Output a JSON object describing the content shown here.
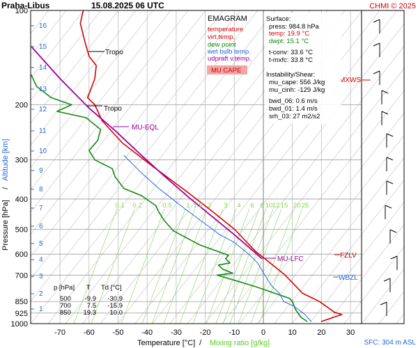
{
  "header": {
    "station": "Praha-Libus",
    "datetime": "15.08.2025 06 UTC",
    "credit": "CHMI © 2025"
  },
  "legend": {
    "title": "EMAGRAM",
    "items": [
      {
        "label": "temperature",
        "color": "#d40000"
      },
      {
        "label": "virt.temp.",
        "color": "#d40000"
      },
      {
        "label": "dew point",
        "color": "#118811"
      },
      {
        "label": "wet bulb temp.",
        "color": "#2266dd"
      },
      {
        "label": "udpraft v.temp.",
        "color": "#9a009a"
      }
    ],
    "badge": "MU CAPE",
    "badge_color": "#f4a6a6"
  },
  "info": {
    "surface_title": "Surface:",
    "surface": [
      {
        "text": "press: 984.8 hPa",
        "color": "#000000"
      },
      {
        "text": "temp: 19.9 °C",
        "color": "#d40000"
      },
      {
        "text": "dwpt: 15.1 °C",
        "color": "#118811"
      }
    ],
    "conv": [
      "t-conv: 33.6 °C",
      "t-mxfc: 33.8 °C"
    ],
    "instab_title": "Instability/Shear:",
    "instab": [
      "mu_cape: 556 J/kg",
      "mu_cinh: -129 J/kg"
    ],
    "shear": [
      "bwd_06: 0.6 m/s",
      "bwd_01: 1.4 m/s",
      "srh_03: 27 m2/s2"
    ]
  },
  "table": {
    "headers": [
      "p [hPa]",
      "T",
      "Td [°C]"
    ],
    "rows": [
      [
        "500",
        "-9.9",
        "-30.9"
      ],
      [
        "700",
        "7.5",
        "-15.9"
      ],
      [
        "850",
        "19.3",
        "10.0"
      ]
    ]
  },
  "axis_labels": {
    "x_temp": "Temperature [°C]",
    "x_sep": "/",
    "x_mix": "Mixing ratio [g/kg]",
    "y_pres": "Pressure [hPa]",
    "y_sep": "/",
    "y_alt": "Altitude [km]",
    "sfc": "SFC: 304 m ASL"
  },
  "levels": {
    "tropo1": "Tropo",
    "tropo2": "Tropo",
    "mu_eql": "MU-EQL",
    "mu_lfc": "MU-LFC",
    "mxws": "MXWS",
    "fzlv": "FZLV",
    "wbzl": "WBZL"
  },
  "chart_data": {
    "type": "line",
    "x_axis": {
      "label": "Temperature [°C]",
      "ticks": [
        -70,
        -60,
        -50,
        -40,
        -30,
        -20,
        -10,
        0,
        10,
        20,
        30
      ],
      "range": [
        -80,
        35
      ]
    },
    "y_axis": {
      "label": "Pressure [hPa]",
      "scale": "log",
      "ticks": [
        100,
        200,
        300,
        400,
        500,
        600,
        700,
        850,
        925,
        1000
      ],
      "range": [
        1000,
        100
      ]
    },
    "altitude_km_ticks": [
      1,
      2,
      3,
      4,
      5,
      6,
      7,
      8,
      9,
      10,
      11,
      12,
      13,
      14,
      15,
      16
    ],
    "mixing_ratio_labels": [
      "0.1",
      "0.2",
      "0.5",
      "1",
      "1.5",
      "2",
      "3",
      "4",
      "6",
      "8",
      "10",
      "12",
      "15",
      "20",
      "25"
    ],
    "series": [
      {
        "name": "temperature",
        "color": "#d40000",
        "points": [
          [
            19.9,
            985
          ],
          [
            27.0,
            935
          ],
          [
            24.5,
            920
          ],
          [
            19.3,
            850
          ],
          [
            13.5,
            800
          ],
          [
            7.5,
            700
          ],
          [
            0.5,
            620
          ],
          [
            -2.5,
            590
          ],
          [
            -9.9,
            500
          ],
          [
            -18.0,
            435
          ],
          [
            -27.0,
            375
          ],
          [
            -38.0,
            315
          ],
          [
            -48.5,
            265
          ],
          [
            -55.5,
            225
          ],
          [
            -58.0,
            200
          ],
          [
            -60.5,
            190
          ],
          [
            -58.0,
            165
          ],
          [
            -57.5,
            150
          ],
          [
            -60.0,
            140
          ],
          [
            -61.5,
            125
          ],
          [
            -63.0,
            110
          ],
          [
            -62.0,
            100
          ]
        ]
      },
      {
        "name": "dew point",
        "color": "#118811",
        "points": [
          [
            15.1,
            985
          ],
          [
            13.0,
            955
          ],
          [
            11.0,
            900
          ],
          [
            10.0,
            850
          ],
          [
            9.0,
            830
          ],
          [
            -3.0,
            760
          ],
          [
            -15.9,
            700
          ],
          [
            -10.5,
            690
          ],
          [
            -14.0,
            670
          ],
          [
            -15.5,
            650
          ],
          [
            -11.5,
            640
          ],
          [
            -13.0,
            620
          ],
          [
            -12.0,
            605
          ],
          [
            -22.0,
            560
          ],
          [
            -31.0,
            505
          ],
          [
            -34.0,
            470
          ],
          [
            -36.0,
            440
          ],
          [
            -37.0,
            420
          ],
          [
            -42.0,
            390
          ],
          [
            -48.0,
            370
          ],
          [
            -51.0,
            340
          ],
          [
            -52.0,
            320
          ],
          [
            -58.0,
            300
          ],
          [
            -60.0,
            280
          ],
          [
            -57.0,
            260
          ],
          [
            -56.0,
            240
          ],
          [
            -61.0,
            220
          ],
          [
            -71.0,
            210
          ],
          [
            -66.0,
            200
          ],
          [
            -73.0,
            190
          ],
          [
            -78.0,
            175
          ],
          [
            -80.0,
            160
          ]
        ]
      },
      {
        "name": "wet bulb temp.",
        "color": "#2266dd",
        "points": [
          [
            16.5,
            985
          ],
          [
            14.0,
            930
          ],
          [
            10.5,
            880
          ],
          [
            7.0,
            850
          ],
          [
            5.5,
            800
          ],
          [
            3.0,
            760
          ],
          [
            0.5,
            700
          ],
          [
            -2.0,
            640
          ],
          [
            -5.0,
            600
          ],
          [
            -10.0,
            550
          ],
          [
            -15.0,
            520
          ],
          [
            -20.0,
            480
          ],
          [
            -27.0,
            430
          ],
          [
            -36.0,
            370
          ],
          [
            -42.0,
            330
          ],
          [
            -48.0,
            290
          ]
        ]
      },
      {
        "name": "udpraft v.temp.",
        "color": "#9a009a",
        "points": [
          [
            -0.5,
            620
          ],
          [
            -5.0,
            570
          ],
          [
            -10.0,
            520
          ],
          [
            -17.0,
            460
          ],
          [
            -25.0,
            400
          ],
          [
            -33.0,
            345
          ],
          [
            -42.0,
            290
          ],
          [
            -51.0,
            242
          ],
          [
            -60.0,
            205
          ],
          [
            -70.0,
            165
          ],
          [
            -80.0,
            130
          ]
        ]
      }
    ]
  }
}
